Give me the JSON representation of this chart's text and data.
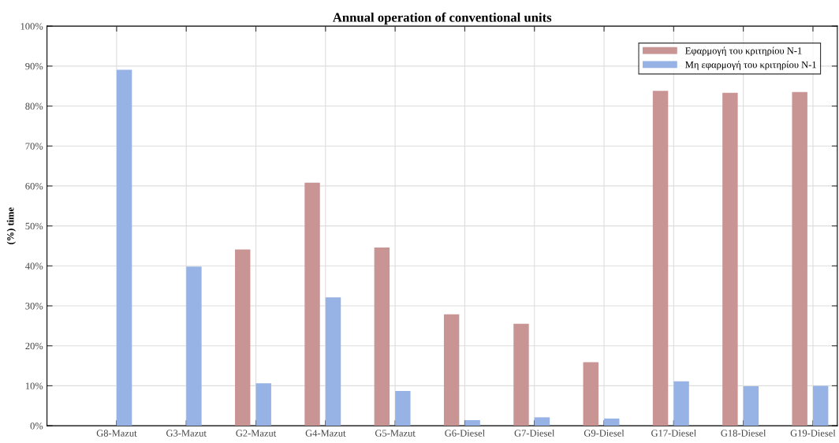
{
  "chart_data": {
    "type": "bar",
    "title": "Annual operation of conventional units",
    "ylabel": "(%) time",
    "categories": [
      "G8-Mazut",
      "G3-Mazut",
      "G2-Mazut",
      "G4-Mazut",
      "G5-Mazut",
      "G6-Diesel",
      "G7-Diesel",
      "G9-Diesel",
      "G17-Diesel",
      "G18-Diesel",
      "G19-Diesel"
    ],
    "series": [
      {
        "name": "Εφαρμογή του κριτηρίου N-1",
        "color": "#c99494",
        "values": [
          0,
          0,
          44.1,
          60.8,
          44.6,
          27.9,
          25.5,
          15.9,
          83.8,
          83.3,
          83.5
        ]
      },
      {
        "name": "Μη εφαρμογή του κριτηρίου N-1",
        "color": "#97b2e4",
        "values": [
          89.1,
          39.8,
          10.6,
          32.1,
          8.7,
          1.4,
          2.1,
          1.8,
          11.1,
          9.9,
          10.0
        ]
      }
    ],
    "ylim": [
      0,
      100
    ],
    "yticks": [
      {
        "value": 0,
        "label": "0%"
      },
      {
        "value": 10,
        "label": "10%"
      },
      {
        "value": 20,
        "label": "20%"
      },
      {
        "value": 30,
        "label": "30%"
      },
      {
        "value": 40,
        "label": "40%"
      },
      {
        "value": 50,
        "label": "50%"
      },
      {
        "value": 60,
        "label": "60%"
      },
      {
        "value": 70,
        "label": "70%"
      },
      {
        "value": 80,
        "label": "80%"
      },
      {
        "value": 90,
        "label": "90%"
      },
      {
        "value": 100,
        "label": "100%"
      }
    ],
    "grid": true,
    "legend": "top right"
  }
}
